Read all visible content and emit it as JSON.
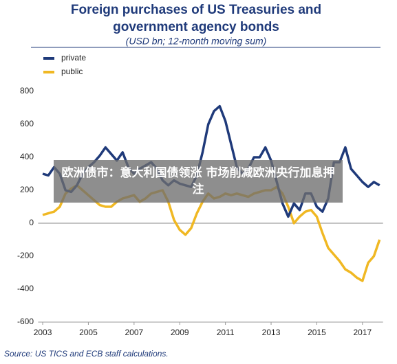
{
  "chart_data": {
    "type": "line",
    "title": [
      "Foreign purchases of US Treasuries and",
      "government agency bonds"
    ],
    "subtitle": "(USD bn; 12-month moving sum)",
    "source": "Source: US TICS and ECB staff calculations.",
    "annotation": "欧洲债市：意大利国债领涨 市场削减欧洲央行加息押注",
    "x": [
      2003,
      2003.25,
      2003.5,
      2003.75,
      2004,
      2004.25,
      2004.5,
      2004.75,
      2005,
      2005.25,
      2005.5,
      2005.75,
      2006,
      2006.25,
      2006.5,
      2006.75,
      2007,
      2007.25,
      2007.5,
      2007.75,
      2008,
      2008.25,
      2008.5,
      2008.75,
      2009,
      2009.25,
      2009.5,
      2009.75,
      2010,
      2010.25,
      2010.5,
      2010.75,
      2011,
      2011.25,
      2011.5,
      2011.75,
      2012,
      2012.25,
      2012.5,
      2012.75,
      2013,
      2013.25,
      2013.5,
      2013.75,
      2014,
      2014.25,
      2014.5,
      2014.75,
      2015,
      2015.25,
      2015.5,
      2015.75,
      2016,
      2016.25,
      2016.5,
      2016.75,
      2017,
      2017.25,
      2017.5,
      2017.75
    ],
    "series": [
      {
        "name": "private",
        "color": "#1f3a7a",
        "values": [
          300,
          290,
          340,
          300,
          200,
          190,
          230,
          300,
          340,
          370,
          410,
          460,
          420,
          380,
          430,
          340,
          300,
          330,
          350,
          370,
          330,
          260,
          230,
          260,
          240,
          230,
          220,
          290,
          430,
          600,
          680,
          710,
          620,
          480,
          340,
          300,
          330,
          400,
          400,
          460,
          380,
          250,
          120,
          40,
          120,
          80,
          180,
          180,
          100,
          70,
          150,
          370,
          370,
          460,
          330,
          290,
          250,
          220,
          250,
          230
        ]
      },
      {
        "name": "public",
        "color": "#f0b823",
        "values": [
          50,
          60,
          70,
          100,
          180,
          210,
          230,
          200,
          170,
          140,
          110,
          100,
          100,
          130,
          150,
          160,
          170,
          130,
          150,
          180,
          190,
          200,
          130,
          20,
          -40,
          -70,
          -30,
          60,
          130,
          180,
          150,
          160,
          180,
          170,
          180,
          170,
          160,
          180,
          190,
          200,
          200,
          220,
          180,
          100,
          0,
          40,
          70,
          80,
          40,
          -60,
          -150,
          -190,
          -230,
          -280,
          -300,
          -330,
          -350,
          -240,
          -200,
          -100
        ]
      }
    ],
    "xlim": [
      2002.8,
      2017.9
    ],
    "xticks": [
      2003,
      2005,
      2007,
      2009,
      2011,
      2013,
      2015,
      2017
    ],
    "ylim": [
      -600,
      800
    ],
    "yticks": [
      -600,
      -400,
      -200,
      0,
      200,
      400,
      600,
      800
    ],
    "grid": false
  }
}
